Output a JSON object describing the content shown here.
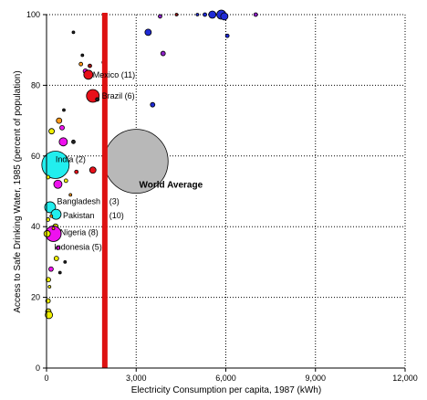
{
  "chart_data": {
    "type": "scatter",
    "title": "",
    "xlabel": "Electricity Consumption per capita, 1987 (kWh)",
    "ylabel": "Access to Safe Drinking Water, 1985  (percent of population)",
    "xlim": [
      0,
      12000
    ],
    "ylim": [
      0,
      100
    ],
    "x_ticks": [
      0,
      3000,
      6000,
      9000,
      12000
    ],
    "x_tick_labels": [
      "0",
      "3,000",
      "6,000",
      "9,000",
      "12,000"
    ],
    "y_ticks": [
      0,
      20,
      40,
      60,
      80,
      100
    ],
    "y_tick_labels": [
      "0",
      "20",
      "40",
      "60",
      "80",
      "100"
    ],
    "grid": true,
    "reference_line": {
      "x": 1950,
      "color": "#dd1111"
    },
    "colors": {
      "red": "#e8101a",
      "magenta": "#ee11ee",
      "cyan": "#22eeee",
      "blue": "#1f2bd6",
      "yellow": "#f0f000",
      "purple": "#8e22c8",
      "orange": "#ff9a1a",
      "darkred": "#991111",
      "gray": "#b8b8b8",
      "black": "#222222"
    },
    "points": [
      {
        "x": 5550,
        "y": 100,
        "r": 4,
        "color": "blue"
      },
      {
        "x": 5850,
        "y": 100,
        "r": 5,
        "color": "blue"
      },
      {
        "x": 5950,
        "y": 99.5,
        "r": 4,
        "color": "blue"
      },
      {
        "x": 5300,
        "y": 100,
        "r": 2,
        "color": "blue"
      },
      {
        "x": 5050,
        "y": 100,
        "r": 1.5,
        "color": "blue"
      },
      {
        "x": 7000,
        "y": 100,
        "r": 2,
        "color": "purple"
      },
      {
        "x": 3800,
        "y": 99.5,
        "r": 2,
        "color": "purple"
      },
      {
        "x": 4350,
        "y": 100,
        "r": 1.5,
        "color": "darkred"
      },
      {
        "x": 3400,
        "y": 95,
        "r": 3.5,
        "color": "blue"
      },
      {
        "x": 6050,
        "y": 94,
        "r": 2,
        "color": "blue"
      },
      {
        "x": 3900,
        "y": 89,
        "r": 2.5,
        "color": "purple"
      },
      {
        "x": 3550,
        "y": 74.5,
        "r": 2.5,
        "color": "blue"
      },
      {
        "x": 1300,
        "y": 84,
        "r": 2.5,
        "color": "magenta"
      },
      {
        "x": 1150,
        "y": 86,
        "r": 2,
        "color": "orange"
      },
      {
        "x": 1450,
        "y": 85.5,
        "r": 2,
        "color": "darkred"
      },
      {
        "x": 1200,
        "y": 88.5,
        "r": 1.5,
        "color": "black"
      },
      {
        "x": 900,
        "y": 95,
        "r": 1.5,
        "color": "black"
      },
      {
        "x": 1400,
        "y": 83,
        "r": 5,
        "color": "red"
      },
      {
        "x": 1550,
        "y": 77,
        "r": 7,
        "color": "red"
      },
      {
        "x": 1700,
        "y": 76,
        "r": 2,
        "color": "black"
      },
      {
        "x": 1900,
        "y": 86.5,
        "r": 1.5,
        "color": "orange"
      },
      {
        "x": 420,
        "y": 70,
        "r": 3,
        "color": "orange"
      },
      {
        "x": 580,
        "y": 73,
        "r": 1.5,
        "color": "black"
      },
      {
        "x": 520,
        "y": 68,
        "r": 2.5,
        "color": "magenta"
      },
      {
        "x": 560,
        "y": 64,
        "r": 4.5,
        "color": "magenta"
      },
      {
        "x": 170,
        "y": 67,
        "r": 3,
        "color": "yellow"
      },
      {
        "x": 900,
        "y": 64,
        "r": 2,
        "color": "black"
      },
      {
        "x": 300,
        "y": 57.5,
        "r": 15,
        "color": "cyan"
      },
      {
        "x": 3000,
        "y": 58.5,
        "r": 35,
        "color": "gray"
      },
      {
        "x": 1550,
        "y": 56,
        "r": 3.5,
        "color": "red"
      },
      {
        "x": 1000,
        "y": 55.5,
        "r": 2,
        "color": "red"
      },
      {
        "x": 380,
        "y": 52,
        "r": 4.5,
        "color": "magenta"
      },
      {
        "x": 650,
        "y": 53,
        "r": 2,
        "color": "yellow"
      },
      {
        "x": 800,
        "y": 49,
        "r": 1.5,
        "color": "orange"
      },
      {
        "x": 50,
        "y": 54,
        "r": 2,
        "color": "yellow"
      },
      {
        "x": 120,
        "y": 45.5,
        "r": 6,
        "color": "cyan"
      },
      {
        "x": 320,
        "y": 43.5,
        "r": 5.5,
        "color": "cyan"
      },
      {
        "x": 50,
        "y": 42,
        "r": 2,
        "color": "yellow"
      },
      {
        "x": 300,
        "y": 40,
        "r": 3,
        "color": "yellow"
      },
      {
        "x": 230,
        "y": 38,
        "r": 8.5,
        "color": "magenta"
      },
      {
        "x": 20,
        "y": 38,
        "r": 3.5,
        "color": "yellow"
      },
      {
        "x": 380,
        "y": 34,
        "r": 2,
        "color": "magenta"
      },
      {
        "x": 330,
        "y": 31,
        "r": 2.5,
        "color": "yellow"
      },
      {
        "x": 620,
        "y": 30,
        "r": 1.5,
        "color": "black"
      },
      {
        "x": 150,
        "y": 28,
        "r": 2.5,
        "color": "magenta"
      },
      {
        "x": 60,
        "y": 25,
        "r": 2.5,
        "color": "yellow"
      },
      {
        "x": 100,
        "y": 23,
        "r": 1.5,
        "color": "yellow"
      },
      {
        "x": 450,
        "y": 27,
        "r": 1.5,
        "color": "black"
      },
      {
        "x": 50,
        "y": 19,
        "r": 2.5,
        "color": "yellow"
      },
      {
        "x": 60,
        "y": 16,
        "r": 3,
        "color": "yellow"
      },
      {
        "x": 80,
        "y": 15,
        "r": 4,
        "color": "yellow"
      },
      {
        "x": 160,
        "y": 43,
        "r": 1.5,
        "color": "orange"
      },
      {
        "x": 230,
        "y": 39.5,
        "r": 1.5,
        "color": "orange"
      }
    ],
    "annotations": [
      {
        "text": "Mexico (11)",
        "x": 1550,
        "y": 83,
        "bold": false
      },
      {
        "text": "Brazil (6)",
        "x": 1850,
        "y": 77,
        "bold": false
      },
      {
        "text": "India (2)",
        "x": 300,
        "y": 59,
        "bold": false
      },
      {
        "text": "World Average",
        "x": 3100,
        "y": 51.8,
        "bold": true
      },
      {
        "text": "Bangladesh",
        "x": 350,
        "y": 47.2,
        "bold": false
      },
      {
        "text": "(3)",
        "x": 2100,
        "y": 47.2,
        "bold": false
      },
      {
        "text": "Pakistan",
        "x": 550,
        "y": 43.2,
        "bold": false
      },
      {
        "text": "(10)",
        "x": 2100,
        "y": 43.2,
        "bold": false
      },
      {
        "text": "Nigeria (8)",
        "x": 450,
        "y": 38.4,
        "bold": false
      },
      {
        "text": "Indonesia (5)",
        "x": 250,
        "y": 34.2,
        "bold": false
      }
    ]
  }
}
